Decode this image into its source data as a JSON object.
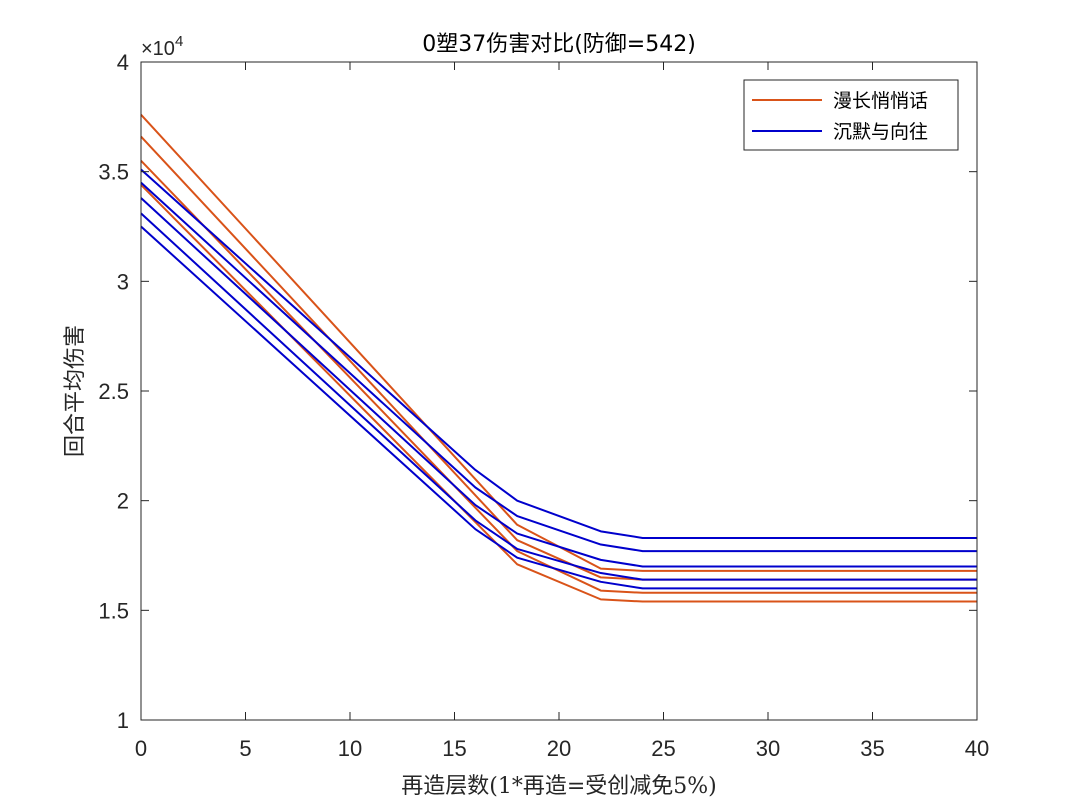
{
  "chart_data": {
    "type": "line",
    "title": "0塑37伤害对比(防御=542)",
    "xlabel": "再造层数(1*再造=受创减免5%)",
    "ylabel": "回合平均伤害",
    "exponent": {
      "base": "×10",
      "power": "4"
    },
    "xlim": [
      0,
      40
    ],
    "ylim": [
      1,
      4
    ],
    "xticks": [
      0,
      5,
      10,
      15,
      20,
      25,
      30,
      35,
      40
    ],
    "yticks": [
      1,
      1.5,
      2,
      2.5,
      3,
      3.5,
      4
    ],
    "ytick_labels": [
      "1",
      "1.5",
      "2",
      "2.5",
      "3",
      "3.5",
      "4"
    ],
    "legend_position": "top-right",
    "legend": [
      {
        "name": "漫长悄悄话",
        "color": "#D95319"
      },
      {
        "name": "沉默与向往",
        "color": "#0000CC"
      }
    ],
    "series": [
      {
        "name": "漫长悄悄话",
        "color": "#D95319",
        "x": [
          0,
          18,
          22,
          24,
          40
        ],
        "y": [
          3.76,
          1.89,
          1.69,
          1.68,
          1.68
        ]
      },
      {
        "name": "漫长悄悄话",
        "color": "#D95319",
        "x": [
          0,
          18,
          22,
          24,
          40
        ],
        "y": [
          3.66,
          1.82,
          1.65,
          1.64,
          1.64
        ]
      },
      {
        "name": "漫长悄悄话",
        "color": "#D95319",
        "x": [
          0,
          18,
          22,
          24,
          40
        ],
        "y": [
          3.55,
          1.77,
          1.59,
          1.58,
          1.58
        ]
      },
      {
        "name": "漫长悄悄话",
        "color": "#D95319",
        "x": [
          0,
          18,
          22,
          24,
          40
        ],
        "y": [
          3.44,
          1.71,
          1.55,
          1.54,
          1.54
        ]
      },
      {
        "name": "沉默与向往",
        "color": "#0000CC",
        "x": [
          0,
          16,
          18,
          22,
          24,
          40
        ],
        "y": [
          3.51,
          2.14,
          2.0,
          1.86,
          1.83,
          1.83
        ]
      },
      {
        "name": "沉默与向往",
        "color": "#0000CC",
        "x": [
          0,
          16,
          18,
          22,
          24,
          40
        ],
        "y": [
          3.45,
          2.06,
          1.93,
          1.8,
          1.77,
          1.77
        ]
      },
      {
        "name": "沉默与向往",
        "color": "#0000CC",
        "x": [
          0,
          16,
          18,
          22,
          24,
          40
        ],
        "y": [
          3.38,
          1.98,
          1.85,
          1.73,
          1.7,
          1.7
        ]
      },
      {
        "name": "沉默与向往",
        "color": "#0000CC",
        "x": [
          0,
          16,
          18,
          22,
          24,
          40
        ],
        "y": [
          3.31,
          1.91,
          1.78,
          1.67,
          1.64,
          1.64
        ]
      },
      {
        "name": "沉默与向往",
        "color": "#0000CC",
        "x": [
          0,
          16,
          18,
          22,
          24,
          40
        ],
        "y": [
          3.25,
          1.87,
          1.74,
          1.63,
          1.6,
          1.6
        ]
      }
    ]
  }
}
